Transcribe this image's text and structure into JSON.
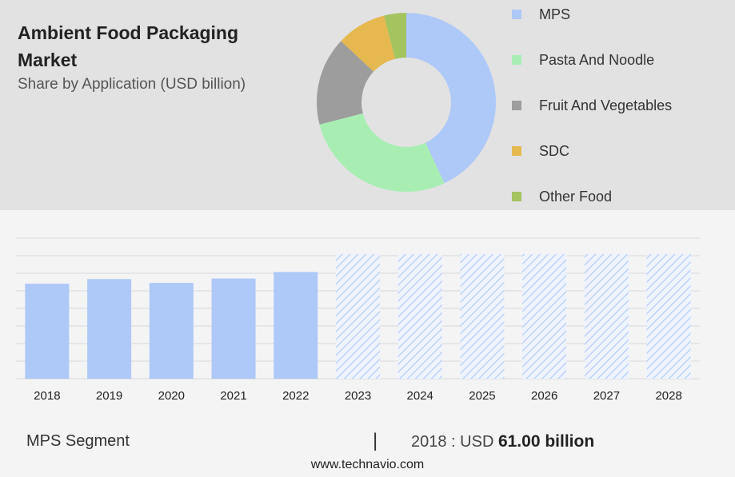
{
  "header": {
    "title": "Ambient Food Packaging Market",
    "subtitle": "Share by Application (USD billion)"
  },
  "chart_data": [
    {
      "type": "pie",
      "variant": "donut",
      "categories": [
        "MPS",
        "Pasta And Noodle",
        "Fruit And Vegetables",
        "SDC",
        "Other Food"
      ],
      "values": [
        43,
        28,
        16,
        9,
        4
      ],
      "colors": [
        "#aec8f7",
        "#a8eeb3",
        "#9d9d9d",
        "#e5b950",
        "#a3c45f"
      ],
      "legend": "right"
    },
    {
      "type": "bar",
      "categories": [
        "2018",
        "2019",
        "2020",
        "2021",
        "2022",
        "2023",
        "2024",
        "2025",
        "2026",
        "2027",
        "2028"
      ],
      "values": [
        61.0,
        64.0,
        61.5,
        64.3,
        68.5,
        null,
        null,
        null,
        null,
        null,
        null
      ],
      "forecast_categories": [
        "2023",
        "2024",
        "2025",
        "2026",
        "2027",
        "2028"
      ],
      "ylim": [
        0,
        80
      ],
      "grid": true,
      "colors": {
        "bar": "#aec8f7",
        "forecast_hatch": "#aec8f7"
      }
    }
  ],
  "footer": {
    "segment_label": "MPS Segment",
    "separator": "|",
    "value_prefix": "2018 : USD",
    "value_strong": "61.00 billion",
    "url": "www.technavio.com"
  }
}
